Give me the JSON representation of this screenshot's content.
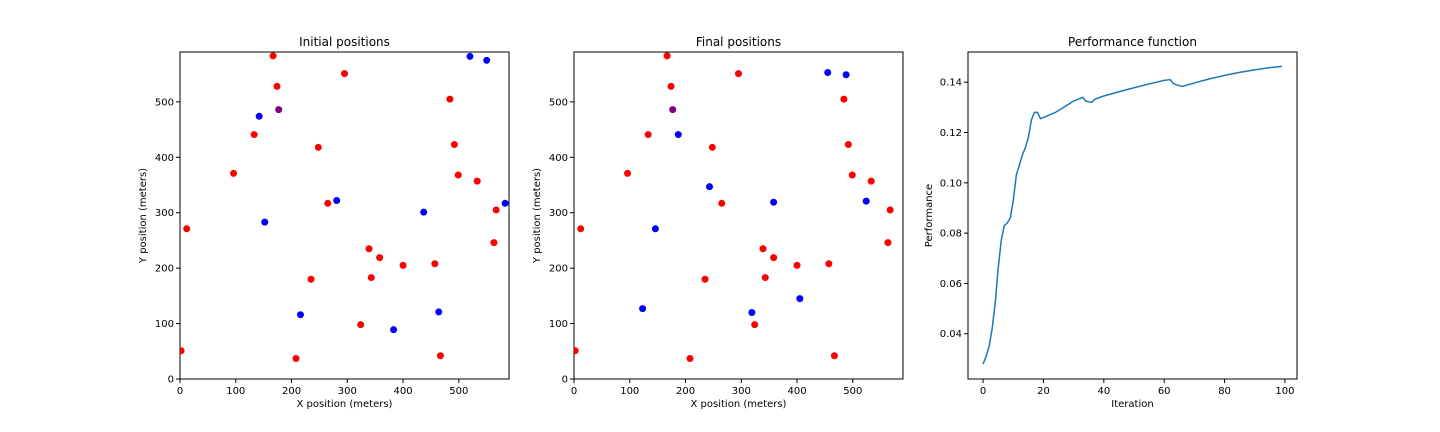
{
  "colors": {
    "red": "#ff0000",
    "blue": "#0000ff",
    "purple": "#800080",
    "line": "#1f77b4"
  },
  "chart_data": [
    {
      "type": "scatter",
      "title": "Initial positions",
      "xlabel": "X position (meters)",
      "ylabel": "Y position (meters)",
      "xlim": [
        0,
        590
      ],
      "ylim": [
        0,
        590
      ],
      "xticks": [
        0,
        100,
        200,
        300,
        400,
        500
      ],
      "yticks": [
        0,
        100,
        200,
        300,
        400,
        500
      ],
      "grid": false,
      "series": [
        {
          "color": "red",
          "points": [
            [
              167,
              583
            ],
            [
              174,
              528
            ],
            [
              295,
              551
            ],
            [
              133,
              441
            ],
            [
              248,
              418
            ],
            [
              96,
              371
            ],
            [
              265,
              317
            ],
            [
              12,
              271
            ],
            [
              484,
              505
            ],
            [
              492,
              423
            ],
            [
              499,
              368
            ],
            [
              533,
              357
            ],
            [
              567,
              305
            ],
            [
              563,
              246
            ],
            [
              339,
              235
            ],
            [
              358,
              219
            ],
            [
              343,
              183
            ],
            [
              400,
              205
            ],
            [
              457,
              208
            ],
            [
              235,
              180
            ],
            [
              324,
              98
            ],
            [
              208,
              37
            ],
            [
              467,
              42
            ],
            [
              2,
              51
            ]
          ]
        },
        {
          "color": "blue",
          "points": [
            [
              520,
              582
            ],
            [
              550,
              575
            ],
            [
              142,
              474
            ],
            [
              152,
              283
            ],
            [
              281,
              322
            ],
            [
              437,
              301
            ],
            [
              583,
              317
            ],
            [
              216,
              116
            ],
            [
              383,
              89
            ],
            [
              464,
              121
            ]
          ]
        },
        {
          "color": "purple",
          "points": [
            [
              177,
              486
            ]
          ]
        }
      ]
    },
    {
      "type": "scatter",
      "title": "Final positions",
      "xlabel": "X position (meters)",
      "ylabel": "Y position (meters)",
      "xlim": [
        0,
        590
      ],
      "ylim": [
        0,
        590
      ],
      "xticks": [
        0,
        100,
        200,
        300,
        400,
        500
      ],
      "yticks": [
        0,
        100,
        200,
        300,
        400,
        500
      ],
      "grid": false,
      "series": [
        {
          "color": "red",
          "points": [
            [
              167,
              583
            ],
            [
              174,
              528
            ],
            [
              295,
              551
            ],
            [
              133,
              441
            ],
            [
              248,
              418
            ],
            [
              96,
              371
            ],
            [
              265,
              317
            ],
            [
              12,
              271
            ],
            [
              484,
              505
            ],
            [
              492,
              423
            ],
            [
              499,
              368
            ],
            [
              533,
              357
            ],
            [
              567,
              305
            ],
            [
              563,
              246
            ],
            [
              339,
              235
            ],
            [
              358,
              219
            ],
            [
              343,
              183
            ],
            [
              400,
              205
            ],
            [
              457,
              208
            ],
            [
              235,
              180
            ],
            [
              324,
              98
            ],
            [
              208,
              37
            ],
            [
              467,
              42
            ],
            [
              2,
              51
            ]
          ]
        },
        {
          "color": "blue",
          "points": [
            [
              455,
              553
            ],
            [
              488,
              549
            ],
            [
              187,
              441
            ],
            [
              243,
              347
            ],
            [
              146,
              271
            ],
            [
              358,
              319
            ],
            [
              524,
              321
            ],
            [
              123,
              127
            ],
            [
              319,
              120
            ],
            [
              405,
              145
            ]
          ]
        },
        {
          "color": "purple",
          "points": [
            [
              177,
              486
            ]
          ]
        }
      ]
    },
    {
      "type": "line",
      "title": "Performance function",
      "xlabel": "Iteration",
      "ylabel": "Performance",
      "xlim": [
        -5,
        104
      ],
      "ylim": [
        0.022,
        0.152
      ],
      "xticks": [
        0,
        20,
        40,
        60,
        80,
        100
      ],
      "yticks": [
        0.04,
        0.06,
        0.08,
        0.1,
        0.12,
        0.14
      ],
      "ytick_labels": [
        "0.04",
        "0.06",
        "0.08",
        "0.10",
        "0.12",
        "0.14"
      ],
      "grid": false,
      "series": [
        {
          "color": "line",
          "x": [
            0,
            1,
            2,
            3,
            4,
            5,
            6,
            7,
            8,
            9,
            10,
            11,
            12,
            13,
            14,
            15,
            16,
            17,
            18,
            19,
            20,
            22,
            24,
            26,
            28,
            30,
            33,
            34,
            36,
            37,
            40,
            45,
            50,
            55,
            60,
            62,
            63,
            64,
            66,
            70,
            75,
            80,
            85,
            90,
            95,
            99
          ],
          "y": [
            0.028,
            0.031,
            0.035,
            0.042,
            0.052,
            0.066,
            0.077,
            0.083,
            0.084,
            0.086,
            0.093,
            0.103,
            0.107,
            0.111,
            0.114,
            0.118,
            0.125,
            0.128,
            0.128,
            0.1255,
            0.126,
            0.127,
            0.128,
            0.1295,
            0.131,
            0.1325,
            0.134,
            0.1325,
            0.132,
            0.1332,
            0.1345,
            0.1362,
            0.1378,
            0.1393,
            0.1407,
            0.141,
            0.1395,
            0.139,
            0.1383,
            0.1397,
            0.1413,
            0.1427,
            0.1439,
            0.1449,
            0.1458,
            0.1463
          ]
        }
      ]
    }
  ]
}
